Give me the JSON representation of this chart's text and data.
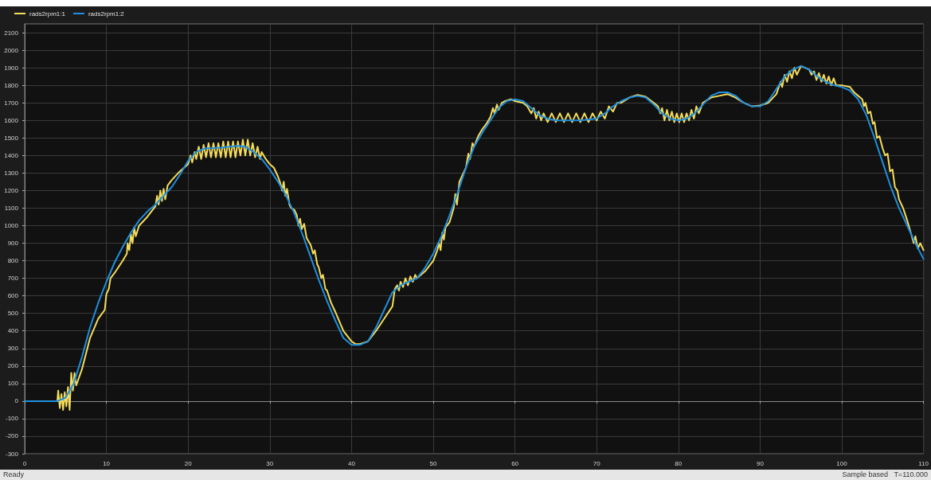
{
  "chart_data": {
    "type": "line",
    "xlim": [
      0,
      110
    ],
    "xticks": [
      0,
      10,
      20,
      30,
      40,
      50,
      60,
      70,
      80,
      90,
      100,
      110
    ],
    "ylim": [
      -300,
      2150
    ],
    "yticks": [
      -300,
      -200,
      -100,
      0,
      100,
      200,
      300,
      400,
      500,
      600,
      700,
      800,
      900,
      1000,
      1100,
      1200,
      1300,
      1400,
      1500,
      1600,
      1700,
      1800,
      1900,
      2000,
      2100
    ],
    "grid": true,
    "legend": "top left",
    "marker": "none",
    "line_style": "solid",
    "annotations": [
      "Ready",
      "Sample based   T=110.000"
    ],
    "series": [
      {
        "name": "rads2rpm1:1",
        "color": "#f5dc5a",
        "x": [
          0,
          4,
          4.1,
          4.3,
          4.5,
          4.7,
          4.9,
          5.1,
          5.3,
          5.5,
          5.7,
          5.9,
          6.1,
          6.3,
          7,
          8,
          9,
          9.8,
          10,
          10.3,
          10.5,
          11,
          12,
          12.5,
          12.6,
          12.8,
          13,
          13.2,
          13.4,
          13.6,
          14,
          15,
          16,
          16.2,
          16.4,
          16.6,
          16.8,
          17,
          17.2,
          17.5,
          18,
          19,
          20,
          20.3,
          20.5,
          20.8,
          21,
          21.3,
          21.6,
          21.9,
          22.2,
          22.5,
          22.8,
          23.1,
          23.4,
          23.7,
          24,
          24.3,
          24.6,
          24.9,
          25.2,
          25.5,
          25.8,
          26.1,
          26.4,
          26.7,
          27,
          27.3,
          27.6,
          27.9,
          28.2,
          28.5,
          28.8,
          29,
          29.5,
          30,
          30.5,
          31,
          31.3,
          31.5,
          31.7,
          31.9,
          32.1,
          32.4,
          32.6,
          33,
          33.3,
          33.5,
          33.7,
          33.9,
          34.2,
          34.5,
          35,
          35.3,
          35.5,
          35.8,
          36,
          36.3,
          36.5,
          36.8,
          37,
          37.5,
          38,
          39,
          40,
          40.5,
          41,
          42,
          43,
          44,
          45,
          45.3,
          45.6,
          45.8,
          46,
          46.3,
          46.6,
          46.9,
          47.2,
          47.5,
          47.8,
          48,
          49,
          50,
          50.5,
          50.7,
          50.9,
          51.1,
          51.3,
          51.5,
          52,
          52.5,
          52.7,
          52.9,
          53.2,
          53.5,
          54,
          54.3,
          54.5,
          54.8,
          55,
          55.5,
          56,
          56.5,
          57,
          57.3,
          57.5,
          57.8,
          58,
          58.4,
          58.8,
          59.5,
          60,
          61,
          61.5,
          62,
          62.3,
          62.6,
          62.9,
          63.2,
          63.5,
          64,
          64.5,
          65,
          65.5,
          66,
          66.5,
          67,
          67.5,
          68,
          68.5,
          69,
          69.5,
          70,
          70.5,
          71,
          71.5,
          72,
          72.5,
          73,
          74,
          75,
          76,
          77,
          77.5,
          77.8,
          78,
          78.3,
          78.6,
          78.9,
          79.2,
          79.5,
          79.8,
          80.1,
          80.4,
          80.7,
          81,
          81.3,
          81.6,
          81.9,
          82.2,
          82.5,
          83,
          84,
          85,
          86,
          87,
          88,
          89,
          90,
          91,
          92,
          92.5,
          92.7,
          93,
          93.3,
          93.6,
          93.9,
          94.2,
          94.5,
          95,
          96,
          96.3,
          96.6,
          96.9,
          97.2,
          97.5,
          97.8,
          98.1,
          98.4,
          98.7,
          99,
          99.3,
          100,
          101,
          101.5,
          102,
          102.5,
          102.7,
          102.9,
          103.2,
          103.5,
          103.8,
          104,
          104.3,
          104.6,
          105,
          105.3,
          105.6,
          105.9,
          106.2,
          106.5,
          106.8,
          107,
          107.5,
          108,
          108.5,
          108.8,
          109,
          109.3,
          109.6,
          110
        ],
        "values": [
          0,
          0,
          60,
          -40,
          40,
          -50,
          50,
          -30,
          80,
          -50,
          160,
          60,
          160,
          90,
          180,
          360,
          470,
          520,
          610,
          640,
          700,
          730,
          800,
          840,
          900,
          860,
          950,
          900,
          990,
          940,
          1000,
          1050,
          1110,
          1170,
          1120,
          1200,
          1140,
          1210,
          1150,
          1230,
          1260,
          1310,
          1350,
          1400,
          1360,
          1420,
          1380,
          1450,
          1380,
          1460,
          1390,
          1470,
          1390,
          1470,
          1390,
          1470,
          1390,
          1480,
          1390,
          1480,
          1390,
          1480,
          1390,
          1480,
          1400,
          1490,
          1400,
          1490,
          1400,
          1470,
          1390,
          1450,
          1380,
          1420,
          1380,
          1350,
          1330,
          1280,
          1240,
          1200,
          1250,
          1170,
          1210,
          1120,
          1100,
          1090,
          1060,
          1000,
          1040,
          980,
          1010,
          930,
          890,
          840,
          860,
          780,
          760,
          700,
          720,
          640,
          630,
          560,
          510,
          400,
          340,
          325,
          325,
          340,
          400,
          470,
          540,
          640,
          660,
          630,
          680,
          650,
          700,
          660,
          710,
          680,
          720,
          700,
          740,
          800,
          860,
          900,
          860,
          960,
          920,
          990,
          1020,
          1100,
          1180,
          1120,
          1250,
          1280,
          1330,
          1410,
          1380,
          1470,
          1450,
          1510,
          1550,
          1580,
          1620,
          1670,
          1640,
          1690,
          1660,
          1700,
          1710,
          1720,
          1710,
          1700,
          1680,
          1640,
          1670,
          1610,
          1650,
          1600,
          1640,
          1590,
          1640,
          1590,
          1640,
          1590,
          1640,
          1590,
          1640,
          1590,
          1640,
          1590,
          1640,
          1600,
          1650,
          1610,
          1680,
          1650,
          1700,
          1700,
          1730,
          1745,
          1735,
          1700,
          1680,
          1640,
          1670,
          1600,
          1660,
          1600,
          1650,
          1590,
          1640,
          1590,
          1640,
          1590,
          1640,
          1600,
          1660,
          1610,
          1680,
          1640,
          1700,
          1730,
          1740,
          1750,
          1730,
          1700,
          1680,
          1685,
          1700,
          1750,
          1820,
          1790,
          1860,
          1820,
          1880,
          1840,
          1900,
          1860,
          1910,
          1890,
          1860,
          1880,
          1830,
          1870,
          1820,
          1860,
          1810,
          1850,
          1800,
          1840,
          1800,
          1800,
          1790,
          1760,
          1740,
          1720,
          1680,
          1700,
          1640,
          1650,
          1580,
          1590,
          1500,
          1510,
          1440,
          1400,
          1410,
          1310,
          1320,
          1220,
          1200,
          1150,
          1100,
          1030,
          950,
          900,
          940,
          870,
          900,
          860
        ]
      },
      {
        "name": "rads2rpm1:2",
        "color": "#1e8fe0",
        "x": [
          0,
          4,
          5,
          6,
          7,
          8,
          9,
          10,
          11,
          12,
          13,
          14,
          15,
          16,
          17,
          18,
          19,
          20,
          21,
          22,
          24,
          26,
          27,
          28,
          29,
          30,
          31,
          32,
          33,
          34,
          35,
          36,
          37,
          38,
          39,
          40,
          41,
          42,
          43,
          44,
          45,
          46,
          47,
          48,
          49,
          50,
          51,
          52,
          53,
          54,
          55,
          56,
          57,
          58,
          59,
          60,
          61,
          62,
          63,
          64,
          65,
          66,
          68,
          70,
          71,
          72,
          73,
          74,
          75,
          76,
          77,
          78,
          79,
          80,
          81,
          82,
          83,
          84,
          85,
          86,
          87,
          88,
          89,
          90,
          91,
          92,
          93,
          94,
          95,
          96,
          97,
          98,
          99,
          100,
          101,
          102,
          103,
          104,
          105,
          106,
          107,
          108,
          109,
          110
        ],
        "values": [
          0,
          0,
          20,
          100,
          250,
          420,
          560,
          680,
          790,
          880,
          960,
          1030,
          1080,
          1120,
          1170,
          1220,
          1290,
          1370,
          1420,
          1440,
          1445,
          1455,
          1450,
          1420,
          1380,
          1320,
          1250,
          1170,
          1070,
          950,
          820,
          690,
          570,
          460,
          360,
          320,
          320,
          340,
          420,
          520,
          620,
          660,
          680,
          700,
          760,
          840,
          940,
          1060,
          1190,
          1330,
          1450,
          1530,
          1600,
          1670,
          1710,
          1720,
          1710,
          1670,
          1630,
          1610,
          1600,
          1600,
          1600,
          1610,
          1640,
          1680,
          1710,
          1730,
          1740,
          1730,
          1690,
          1640,
          1610,
          1600,
          1610,
          1640,
          1690,
          1740,
          1760,
          1760,
          1740,
          1700,
          1680,
          1680,
          1710,
          1780,
          1850,
          1890,
          1910,
          1890,
          1850,
          1820,
          1800,
          1790,
          1770,
          1720,
          1630,
          1500,
          1360,
          1220,
          1100,
          1000,
          900,
          810
        ]
      }
    ]
  }
}
